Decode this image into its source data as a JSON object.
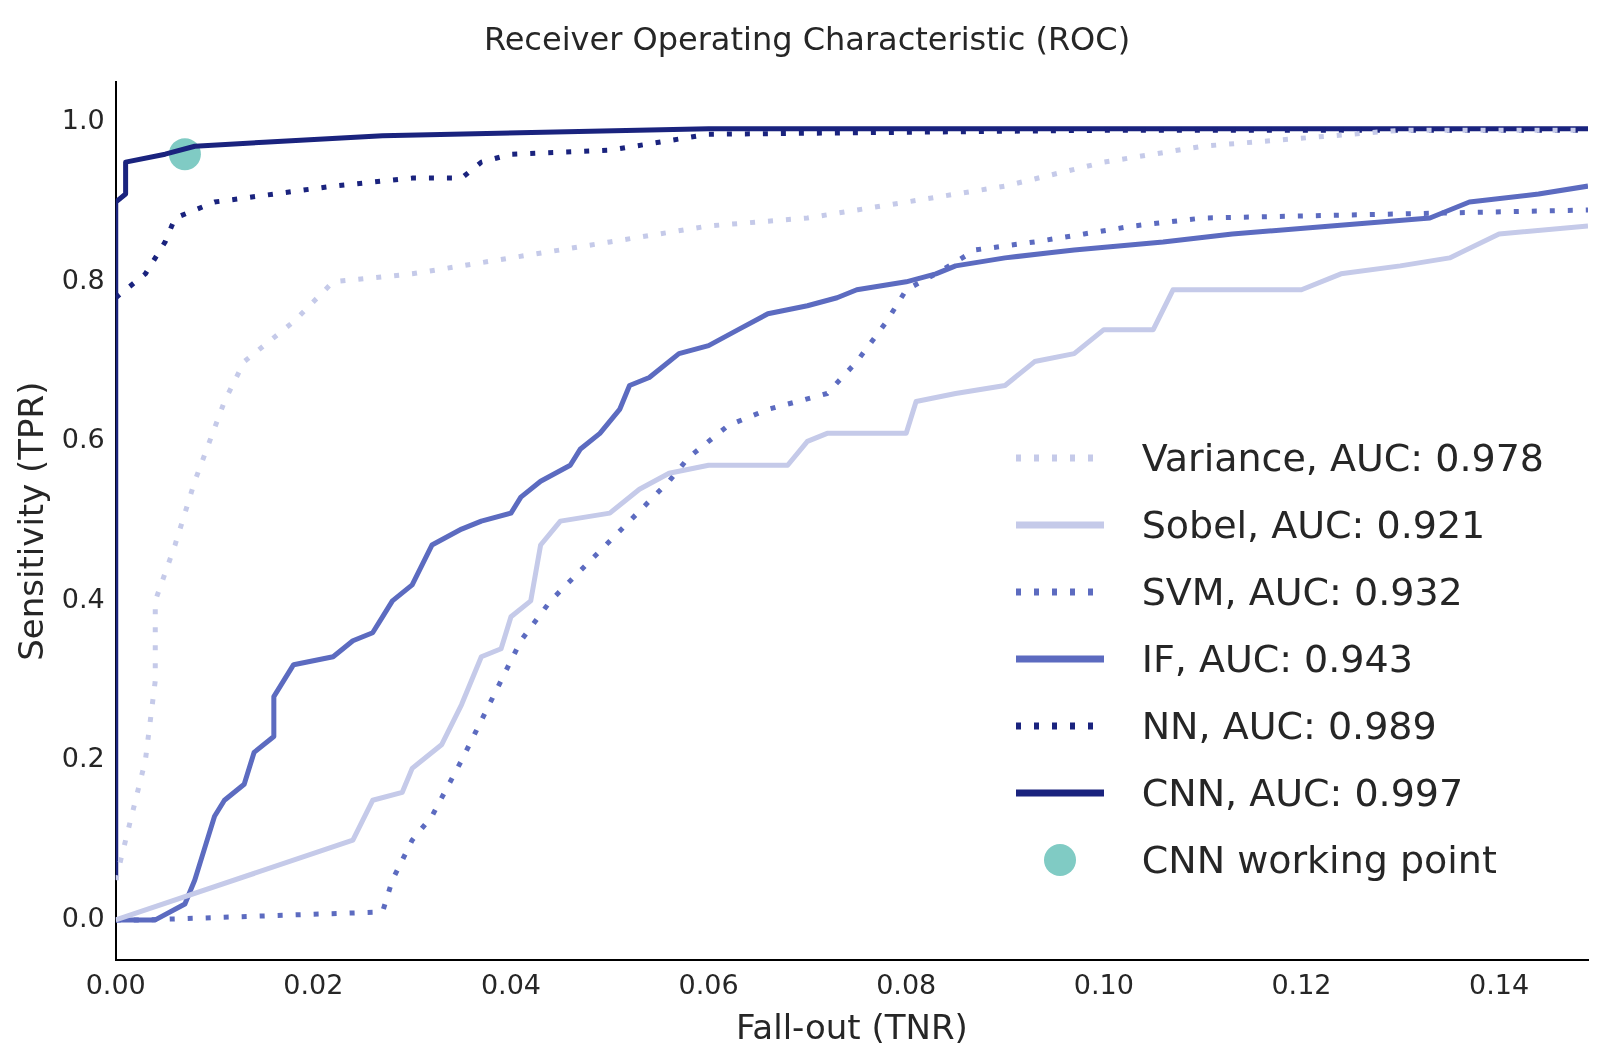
{
  "chart_data": {
    "type": "line",
    "title": "Receiver Operating Characteristic (ROC)",
    "xlabel": "Fall-out (TNR)",
    "ylabel": "Sensitivity (TPR)",
    "xlim": [
      0,
      0.149
    ],
    "ylim": [
      -0.05,
      1.05
    ],
    "xticks": [
      {
        "value": 0,
        "label": "0.00"
      },
      {
        "value": 0.02,
        "label": "0.02"
      },
      {
        "value": 0.04,
        "label": "0.04"
      },
      {
        "value": 0.06,
        "label": "0.06"
      },
      {
        "value": 0.08,
        "label": "0.08"
      },
      {
        "value": 0.1,
        "label": "0.10"
      },
      {
        "value": 0.12,
        "label": "0.12"
      },
      {
        "value": 0.14,
        "label": "0.14"
      }
    ],
    "yticks": [
      {
        "value": 0,
        "label": "0.0"
      },
      {
        "value": 0.2,
        "label": "0.2"
      },
      {
        "value": 0.4,
        "label": "0.4"
      },
      {
        "value": 0.6,
        "label": "0.6"
      },
      {
        "value": 0.8,
        "label": "0.8"
      },
      {
        "value": 1,
        "label": "1.0"
      }
    ],
    "legend": "bottom right",
    "marker": "none",
    "series": [
      {
        "name": "Variance, AUC: 0.978",
        "color": "#c5cae9",
        "line_style": "dotted",
        "x": [
          0,
          0.001,
          0.003,
          0.004,
          0.004,
          0.006,
          0.008,
          0.011,
          0.013,
          0.018,
          0.022,
          0.03,
          0.04,
          0.05,
          0.06,
          0.07,
          0.08,
          0.09,
          0.1,
          0.11,
          0.13,
          0.149
        ],
        "values": [
          0.05,
          0.1,
          0.2,
          0.3,
          0.4,
          0.47,
          0.55,
          0.65,
          0.7,
          0.75,
          0.8,
          0.81,
          0.83,
          0.85,
          0.87,
          0.88,
          0.9,
          0.92,
          0.95,
          0.97,
          0.99,
          0.99
        ]
      },
      {
        "name": "Sobel, AUC: 0.921",
        "color": "#c5cae9",
        "line_style": "solid",
        "x": [
          0,
          0.024,
          0.026,
          0.029,
          0.03,
          0.033,
          0.035,
          0.037,
          0.039,
          0.04,
          0.042,
          0.043,
          0.045,
          0.05,
          0.053,
          0.056,
          0.06,
          0.068,
          0.07,
          0.072,
          0.08,
          0.081,
          0.085,
          0.09,
          0.093,
          0.097,
          0.1,
          0.105,
          0.107,
          0.12,
          0.124,
          0.13,
          0.135,
          0.14,
          0.149
        ],
        "values": [
          0,
          0.1,
          0.15,
          0.16,
          0.19,
          0.22,
          0.27,
          0.33,
          0.34,
          0.38,
          0.4,
          0.47,
          0.5,
          0.51,
          0.54,
          0.56,
          0.57,
          0.57,
          0.6,
          0.61,
          0.61,
          0.65,
          0.66,
          0.67,
          0.7,
          0.71,
          0.74,
          0.74,
          0.79,
          0.79,
          0.81,
          0.82,
          0.83,
          0.86,
          0.87
        ]
      },
      {
        "name": "SVM, AUC: 0.932",
        "color": "#5c6bc0",
        "line_style": "dotted",
        "x": [
          0,
          0.003,
          0.027,
          0.028,
          0.03,
          0.032,
          0.035,
          0.037,
          0.039,
          0.041,
          0.044,
          0.048,
          0.052,
          0.056,
          0.058,
          0.062,
          0.066,
          0.072,
          0.075,
          0.078,
          0.08,
          0.083,
          0.087,
          0.093,
          0.098,
          0.103,
          0.11,
          0.149
        ],
        "values": [
          0,
          0,
          0.01,
          0.05,
          0.1,
          0.13,
          0.2,
          0.25,
          0.3,
          0.35,
          0.4,
          0.45,
          0.5,
          0.55,
          0.58,
          0.62,
          0.64,
          0.66,
          0.7,
          0.75,
          0.79,
          0.81,
          0.84,
          0.85,
          0.86,
          0.87,
          0.88,
          0.89
        ]
      },
      {
        "name": "IF, AUC: 0.943",
        "color": "#5c6bc0",
        "line_style": "solid",
        "x": [
          0,
          0.004,
          0.007,
          0.008,
          0.009,
          0.01,
          0.011,
          0.013,
          0.014,
          0.016,
          0.016,
          0.018,
          0.022,
          0.024,
          0.026,
          0.027,
          0.028,
          0.03,
          0.032,
          0.035,
          0.037,
          0.04,
          0.041,
          0.043,
          0.046,
          0.047,
          0.049,
          0.051,
          0.052,
          0.054,
          0.057,
          0.06,
          0.063,
          0.066,
          0.07,
          0.073,
          0.075,
          0.08,
          0.083,
          0.085,
          0.09,
          0.097,
          0.106,
          0.113,
          0.123,
          0.133,
          0.137,
          0.144,
          0.149
        ],
        "values": [
          0,
          0,
          0.02,
          0.05,
          0.09,
          0.13,
          0.15,
          0.17,
          0.21,
          0.23,
          0.28,
          0.32,
          0.33,
          0.35,
          0.36,
          0.38,
          0.4,
          0.42,
          0.47,
          0.49,
          0.5,
          0.51,
          0.53,
          0.55,
          0.57,
          0.59,
          0.61,
          0.64,
          0.67,
          0.68,
          0.71,
          0.72,
          0.74,
          0.76,
          0.77,
          0.78,
          0.79,
          0.8,
          0.81,
          0.82,
          0.83,
          0.84,
          0.85,
          0.86,
          0.87,
          0.88,
          0.9,
          0.91,
          0.92
        ]
      },
      {
        "name": "NN, AUC: 0.989",
        "color": "#1a237e",
        "line_style": "dotted",
        "x": [
          0,
          0.003,
          0.005,
          0.006,
          0.01,
          0.016,
          0.022,
          0.03,
          0.035,
          0.037,
          0.04,
          0.05,
          0.06,
          0.1,
          0.149
        ],
        "values": [
          0.78,
          0.81,
          0.85,
          0.88,
          0.9,
          0.91,
          0.92,
          0.93,
          0.93,
          0.95,
          0.96,
          0.965,
          0.985,
          0.99,
          0.99
        ]
      },
      {
        "name": "CNN, AUC: 0.997",
        "color": "#1a237e",
        "line_style": "solid",
        "x": [
          0,
          0,
          0.001,
          0.001,
          0.005,
          0.008,
          0.015,
          0.027,
          0.06,
          0.149
        ],
        "values": [
          0.05,
          0.9,
          0.91,
          0.95,
          0.96,
          0.97,
          0.975,
          0.983,
          0.992,
          0.992
        ]
      },
      {
        "name": "CNN working point",
        "color": "#80cbc4",
        "type": "scatter",
        "marker": "circle",
        "x": [
          0.007
        ],
        "values": [
          0.96
        ]
      }
    ]
  }
}
